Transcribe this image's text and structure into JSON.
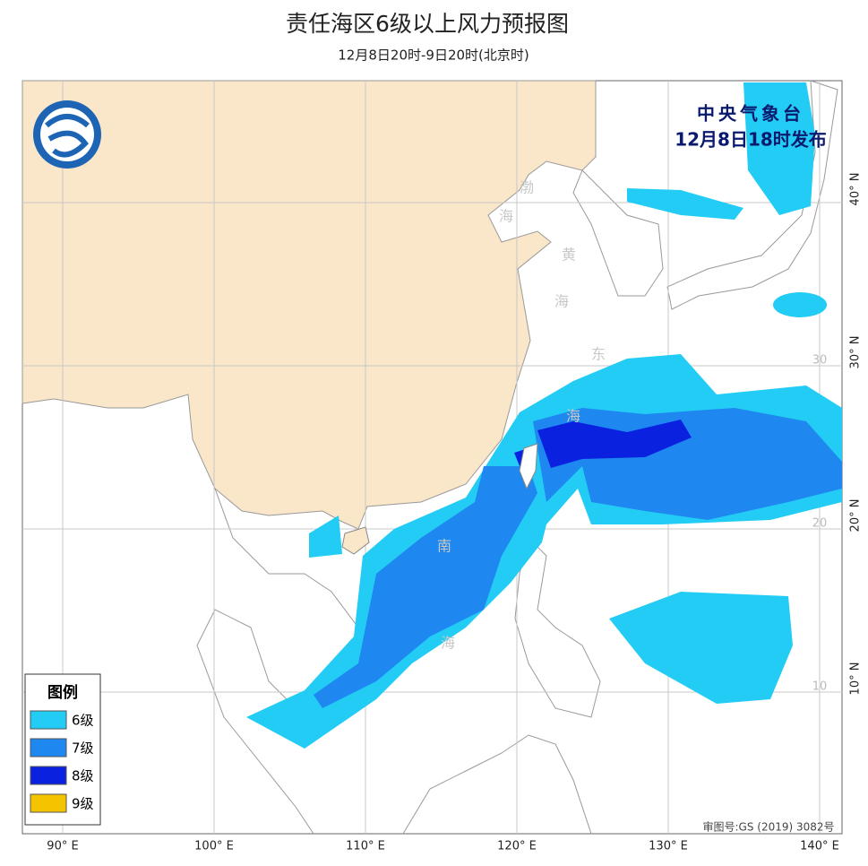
{
  "header": {
    "title": "责任海区6级以上风力预报图",
    "subtitle": "12月8日20时-9日20时(北京时)"
  },
  "issuer": {
    "agency": "中央气象台",
    "issued": "12月8日18时发布"
  },
  "legend": {
    "title": "图例",
    "items": [
      {
        "label": "6级",
        "color": "#22ccf5"
      },
      {
        "label": "7级",
        "color": "#1e88f0"
      },
      {
        "label": "8级",
        "color": "#0a22e0"
      },
      {
        "label": "9级",
        "color": "#f5c400"
      }
    ]
  },
  "map": {
    "lon_ticks": [
      {
        "value": 90,
        "label": "90° E"
      },
      {
        "value": 100,
        "label": "100° E"
      },
      {
        "value": 110,
        "label": "110° E"
      },
      {
        "value": 120,
        "label": "120° E"
      },
      {
        "value": 130,
        "label": "130° E"
      },
      {
        "value": 140,
        "label": "140° E"
      }
    ],
    "lat_ticks": [
      {
        "value": 40,
        "label": "40° N"
      },
      {
        "value": 30,
        "label": "30° N"
      },
      {
        "value": 20,
        "label": "20° N"
      },
      {
        "value": 10,
        "label": "10° N"
      }
    ],
    "lat_inner_labels": [
      30,
      20,
      10
    ],
    "sea_labels": [
      "渤",
      "海",
      "黄",
      "海",
      "东",
      "海",
      "南",
      "海"
    ]
  },
  "footer": {
    "approval": "审图号:GS (2019) 3082号"
  }
}
